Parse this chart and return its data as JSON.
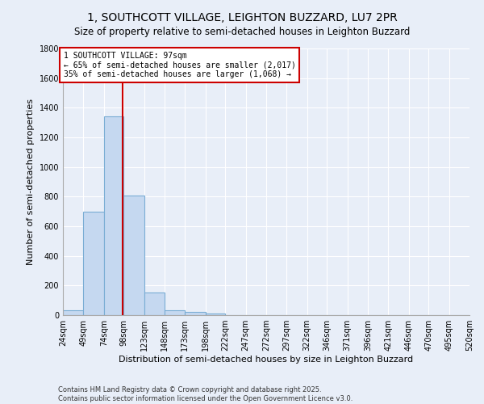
{
  "title": "1, SOUTHCOTT VILLAGE, LEIGHTON BUZZARD, LU7 2PR",
  "subtitle": "Size of property relative to semi-detached houses in Leighton Buzzard",
  "xlabel": "Distribution of semi-detached houses by size in Leighton Buzzard",
  "ylabel": "Number of semi-detached properties",
  "bin_labels": [
    "24sqm",
    "49sqm",
    "74sqm",
    "98sqm",
    "123sqm",
    "148sqm",
    "173sqm",
    "198sqm",
    "222sqm",
    "247sqm",
    "272sqm",
    "297sqm",
    "322sqm",
    "346sqm",
    "371sqm",
    "396sqm",
    "421sqm",
    "446sqm",
    "470sqm",
    "495sqm",
    "520sqm"
  ],
  "bin_edges": [
    24,
    49,
    74,
    98,
    123,
    148,
    173,
    198,
    222,
    247,
    272,
    297,
    322,
    346,
    371,
    396,
    421,
    446,
    470,
    495,
    520
  ],
  "counts": [
    35,
    700,
    1340,
    810,
    155,
    35,
    20,
    10,
    0,
    0,
    0,
    0,
    0,
    0,
    0,
    0,
    0,
    0,
    0,
    0
  ],
  "bar_color": "#c5d8f0",
  "bar_edge_color": "#7aadd4",
  "property_size": 97,
  "vline_color": "#cc0000",
  "annotation_text": "1 SOUTHCOTT VILLAGE: 97sqm\n← 65% of semi-detached houses are smaller (2,017)\n35% of semi-detached houses are larger (1,068) →",
  "annotation_box_edge_color": "#cc0000",
  "ylim": [
    0,
    1800
  ],
  "yticks": [
    0,
    200,
    400,
    600,
    800,
    1000,
    1200,
    1400,
    1600,
    1800
  ],
  "background_color": "#e8eef8",
  "plot_bg_color": "#e8eef8",
  "footer_text": "Contains HM Land Registry data © Crown copyright and database right 2025.\nContains public sector information licensed under the Open Government Licence v3.0.",
  "title_fontsize": 10,
  "subtitle_fontsize": 8.5,
  "xlabel_fontsize": 8,
  "ylabel_fontsize": 8,
  "tick_fontsize": 7,
  "annotation_fontsize": 7,
  "footer_fontsize": 6
}
